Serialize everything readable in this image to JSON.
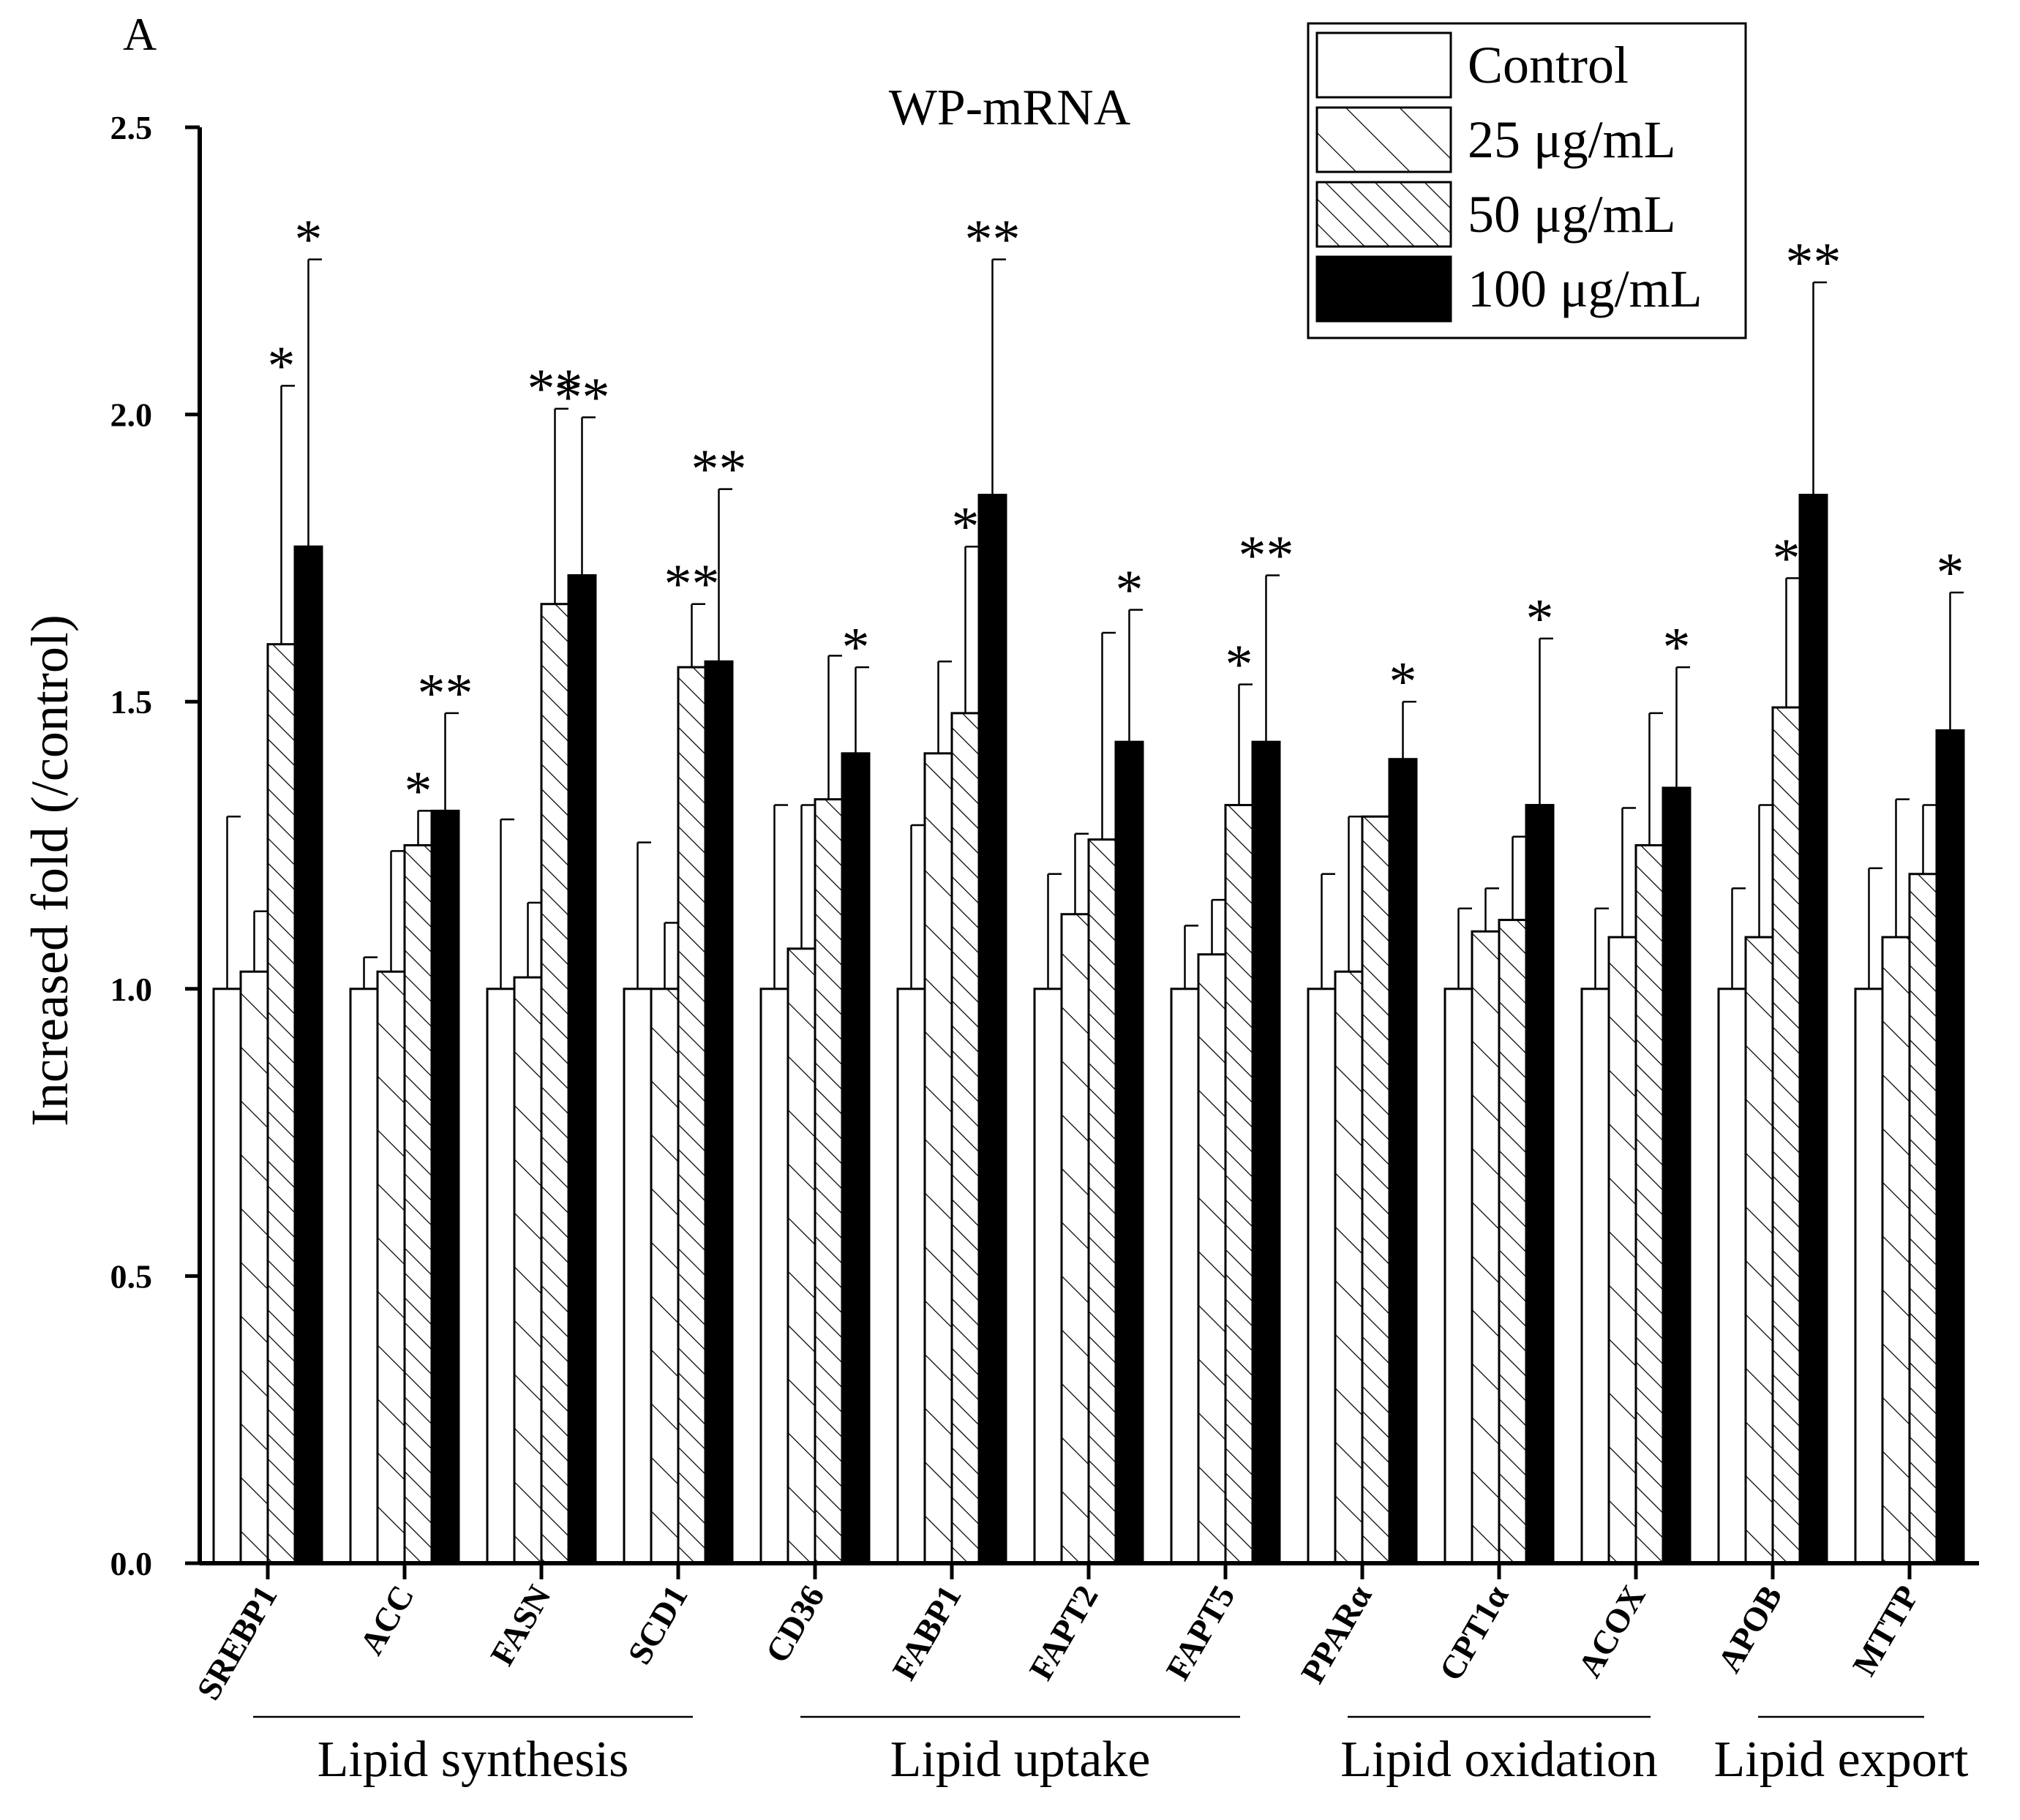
{
  "chart_data": {
    "type": "bar",
    "panel_label": "A",
    "title": "WP-mRNA",
    "xlabel": "",
    "ylabel": "Increased fold (/control)",
    "ylim": [
      0,
      2.5
    ],
    "yticks": [
      "0.0",
      "0.5",
      "1.0",
      "1.5",
      "2.0",
      "2.5"
    ],
    "grid": false,
    "legend_position": "top-right",
    "categories": [
      "SREBP1",
      "ACC",
      "FASN",
      "SCD1",
      "CD36",
      "FABP1",
      "FAPT2",
      "FAPT5",
      "PPARα",
      "CPT1α",
      "ACOX",
      "APOB",
      "MTTP"
    ],
    "series": [
      {
        "name": "Control",
        "fill": "white",
        "values": [
          1.0,
          1.0,
          1.0,
          1.0,
          1.0,
          1.0,
          1.0,
          1.0,
          1.0,
          1.0,
          1.0,
          1.0,
          1.0
        ],
        "errors": [
          0.3,
          0.055,
          0.295,
          0.255,
          0.32,
          0.285,
          0.2,
          0.11,
          0.2,
          0.14,
          0.14,
          0.175,
          0.21
        ],
        "sig": [
          "",
          "",
          "",
          "",
          "",
          "",
          "",
          "",
          "",
          "",
          "",
          "",
          ""
        ]
      },
      {
        "name": "25 μg/mL",
        "fill": "hatch-sparse",
        "values": [
          1.03,
          1.03,
          1.02,
          1.0,
          1.07,
          1.41,
          1.13,
          1.06,
          1.03,
          1.1,
          1.09,
          1.09,
          1.09
        ],
        "errors": [
          0.105,
          0.21,
          0.13,
          0.115,
          0.25,
          0.16,
          0.14,
          0.095,
          0.27,
          0.075,
          0.225,
          0.23,
          0.24
        ],
        "sig": [
          "",
          "",
          "",
          "",
          "",
          "",
          "",
          "",
          "",
          "",
          "",
          "",
          ""
        ]
      },
      {
        "name": "50 μg/mL",
        "fill": "hatch-dense",
        "values": [
          1.6,
          1.25,
          1.67,
          1.56,
          1.33,
          1.48,
          1.26,
          1.32,
          1.3,
          1.12,
          1.25,
          1.49,
          1.2
        ],
        "errors": [
          0.45,
          0.06,
          0.34,
          0.11,
          0.25,
          0.29,
          0.36,
          0.21,
          0.0,
          0.145,
          0.23,
          0.225,
          0.12
        ],
        "sig": [
          "*",
          "*",
          "**",
          "**",
          "",
          "*",
          "",
          "*",
          "",
          "",
          "",
          "*",
          ""
        ]
      },
      {
        "name": "100 μg/mL",
        "fill": "black",
        "values": [
          1.77,
          1.31,
          1.72,
          1.57,
          1.41,
          1.86,
          1.43,
          1.43,
          1.4,
          1.32,
          1.35,
          1.86,
          1.45
        ],
        "errors": [
          0.5,
          0.17,
          0.275,
          0.3,
          0.15,
          0.41,
          0.23,
          0.29,
          0.1,
          0.29,
          0.21,
          0.37,
          0.24
        ],
        "sig": [
          "*",
          "**",
          "**",
          "**",
          "*",
          "**",
          "*",
          "**",
          "*",
          "*",
          "*",
          "**",
          "*"
        ]
      }
    ],
    "groups": [
      {
        "label": "Lipid synthesis",
        "from": 0,
        "to": 3
      },
      {
        "label": "Lipid uptake",
        "from": 4,
        "to": 7
      },
      {
        "label": "Lipid oxidation",
        "from": 8,
        "to": 10
      },
      {
        "label": "Lipid export",
        "from": 11,
        "to": 12
      }
    ]
  }
}
